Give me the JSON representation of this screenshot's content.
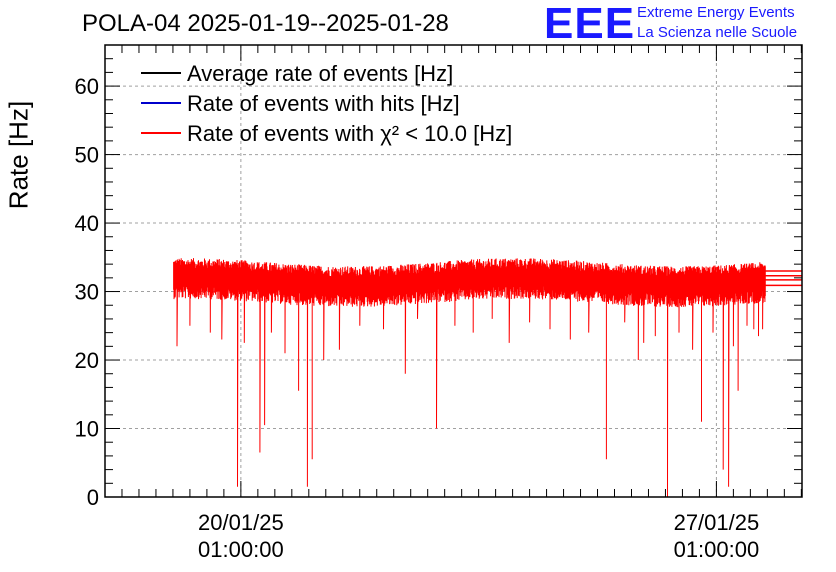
{
  "chart_data": {
    "type": "line",
    "title": "POLA-04 2025-01-19--2025-01-28",
    "ylabel": "Rate [Hz]",
    "xlabel": "",
    "ylim": [
      0,
      66
    ],
    "xlim_days": [
      0,
      10.26
    ],
    "yticks": [
      0,
      10,
      20,
      30,
      40,
      50,
      60
    ],
    "yticks_labels": [
      "0",
      "10",
      "20",
      "30",
      "40",
      "50",
      "60"
    ],
    "xticks": [
      {
        "x": 2.0,
        "line1": "20/01/25",
        "line2": "01:00:00"
      },
      {
        "x": 9.0,
        "line1": "27/01/25",
        "line2": "01:00:00"
      }
    ],
    "grid": true,
    "legend": [
      {
        "label": "Average rate of events [Hz]",
        "color": "#000000"
      },
      {
        "label": "Rate of events with hits [Hz]",
        "color": "#0000cc"
      },
      {
        "label": "Rate of events with χ² < 10.0 [Hz]",
        "color": "#ff0000"
      }
    ],
    "series": [
      {
        "name": "Average rate of events [Hz]",
        "color": "#000000",
        "x": [
          1.01,
          9.72
        ],
        "values": [
          31.8,
          31.8
        ]
      },
      {
        "name": "Rate of events with hits [Hz]",
        "color": "#0000cc",
        "x": [
          1.01,
          9.72
        ],
        "values": [
          31.8,
          31.8
        ]
      },
      {
        "name": "Rate of events with χ² < 10.0 [Hz]",
        "color": "#ff0000",
        "baseline": 31.5,
        "noise_band": [
          27.5,
          34.5
        ],
        "x_range": [
          1.01,
          9.72
        ],
        "dips": [
          {
            "x": 1.06,
            "y": 22.0
          },
          {
            "x": 1.25,
            "y": 25.0
          },
          {
            "x": 1.55,
            "y": 24.0
          },
          {
            "x": 1.72,
            "y": 23.0
          },
          {
            "x": 1.95,
            "y": 1.5
          },
          {
            "x": 2.05,
            "y": 22.5
          },
          {
            "x": 2.28,
            "y": 6.5
          },
          {
            "x": 2.35,
            "y": 10.5
          },
          {
            "x": 2.45,
            "y": 24.0
          },
          {
            "x": 2.65,
            "y": 21.0
          },
          {
            "x": 2.85,
            "y": 15.5
          },
          {
            "x": 2.98,
            "y": 1.5
          },
          {
            "x": 3.05,
            "y": 5.5
          },
          {
            "x": 3.22,
            "y": 20.0
          },
          {
            "x": 3.45,
            "y": 21.5
          },
          {
            "x": 3.75,
            "y": 25.0
          },
          {
            "x": 4.1,
            "y": 24.5
          },
          {
            "x": 4.42,
            "y": 18.0
          },
          {
            "x": 4.6,
            "y": 26.0
          },
          {
            "x": 4.88,
            "y": 10.0
          },
          {
            "x": 5.15,
            "y": 25.0
          },
          {
            "x": 5.42,
            "y": 24.0
          },
          {
            "x": 5.7,
            "y": 26.0
          },
          {
            "x": 5.95,
            "y": 22.5
          },
          {
            "x": 6.25,
            "y": 25.5
          },
          {
            "x": 6.55,
            "y": 24.5
          },
          {
            "x": 6.85,
            "y": 23.0
          },
          {
            "x": 7.12,
            "y": 24.0
          },
          {
            "x": 7.38,
            "y": 5.5
          },
          {
            "x": 7.65,
            "y": 25.5
          },
          {
            "x": 7.85,
            "y": 20.0
          },
          {
            "x": 7.93,
            "y": 22.5
          },
          {
            "x": 8.1,
            "y": 23.5
          },
          {
            "x": 8.28,
            "y": 0.0
          },
          {
            "x": 8.45,
            "y": 24.0
          },
          {
            "x": 8.65,
            "y": 21.5
          },
          {
            "x": 8.78,
            "y": 11.0
          },
          {
            "x": 8.95,
            "y": 24.0
          },
          {
            "x": 9.1,
            "y": 4.0
          },
          {
            "x": 9.18,
            "y": 1.5
          },
          {
            "x": 9.25,
            "y": 22.0
          },
          {
            "x": 9.32,
            "y": 15.5
          },
          {
            "x": 9.45,
            "y": 25.0
          },
          {
            "x": 9.55,
            "y": 24.5
          },
          {
            "x": 9.62,
            "y": 23.5
          },
          {
            "x": 9.68,
            "y": 24.5
          }
        ],
        "tail_levels": [
          33.0,
          32.3,
          31.7,
          30.9
        ]
      }
    ]
  },
  "logo": {
    "text": "EEE",
    "line1": "Extreme Energy Events",
    "line2": "La Scienza nelle Scuole"
  }
}
